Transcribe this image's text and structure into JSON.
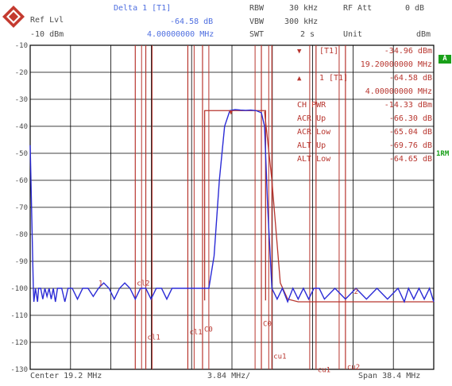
{
  "header": {
    "ref_lvl_label": "Ref Lvl",
    "ref_lvl_value": "-10 dBm",
    "delta_title": "Delta 1 [T1]",
    "delta_level": "-64.58 dB",
    "delta_freq": "4.00000000 MHz",
    "rbw_label": "RBW",
    "rbw_value": "30 kHz",
    "vbw_label": "VBW",
    "vbw_value": "300 kHz",
    "swt_label": "SWT",
    "swt_value": "2 s",
    "rfatt_label": "RF Att",
    "rfatt_value": "0 dB",
    "unit_label": "Unit",
    "unit_value": "dBm"
  },
  "footer": {
    "center": "Center 19.2 MHz",
    "div": "3.84 MHz/",
    "span": "Span 38.4 MHz"
  },
  "side": {
    "badge": "A",
    "label_1rm": "1RM"
  },
  "colors": {
    "trace": "#2b2bd6",
    "marker": "#b8362f",
    "grid": "#000000",
    "header_blue": "#4f6fe0"
  },
  "icons": [
    "rohde-schwarz-logo"
  ],
  "chart_data": {
    "type": "line",
    "title": "",
    "xlabel": "",
    "ylabel": "",
    "xlim": [
      0,
      38.4
    ],
    "ylim": [
      -130,
      -10
    ],
    "y_ticks": [
      -10,
      -20,
      -30,
      -40,
      -50,
      -60,
      -70,
      -80,
      -90,
      -100,
      -110,
      -120,
      -130
    ],
    "grid": true,
    "series": [
      {
        "x": [
          0.0,
          0.3,
          0.35,
          0.5,
          0.7,
          0.8,
          1.0,
          1.2,
          1.4,
          1.6,
          1.8,
          2.0,
          2.2,
          2.4,
          2.6,
          3.0,
          3.3,
          3.6,
          4.0,
          4.5,
          5.0,
          5.5,
          6.0,
          6.5,
          7.0,
          7.5,
          8.0,
          8.5,
          9.0,
          9.5,
          10.0,
          10.5,
          11.0,
          11.5,
          12.0,
          12.5,
          13.0,
          13.5,
          14.0,
          14.5,
          15.0,
          15.5,
          16.0,
          16.5,
          17.0,
          17.5,
          18.0,
          18.5,
          19.0,
          19.5,
          20.0,
          20.5,
          21.0,
          21.5,
          22.0,
          22.3,
          22.6,
          23.0,
          23.5,
          24.0,
          24.5,
          25.0,
          25.5,
          26.0,
          26.5,
          27.0,
          27.5,
          28.0,
          29.0,
          30.0,
          31.0,
          32.0,
          33.0,
          34.0,
          35.0,
          35.6,
          36.0,
          36.5,
          37.0,
          37.5,
          38.0,
          38.4
        ],
        "y": [
          -47,
          -100,
          -105,
          -100,
          -105,
          -100,
          -100,
          -104,
          -100,
          -103,
          -100,
          -104,
          -100,
          -105,
          -100,
          -100,
          -105,
          -100,
          -100,
          -104,
          -100,
          -100,
          -103,
          -100,
          -98,
          -100,
          -104,
          -100,
          -98,
          -100,
          -104,
          -100,
          -100,
          -104,
          -100,
          -100,
          -104,
          -100,
          -100,
          -100,
          -100,
          -100,
          -100,
          -100,
          -100,
          -88,
          -60,
          -40,
          -34.2,
          -33.8,
          -34.0,
          -34.1,
          -34.0,
          -34.2,
          -35.0,
          -40,
          -70,
          -100,
          -104,
          -100,
          -105,
          -100,
          -104,
          -100,
          -104,
          -100,
          -100,
          -104,
          -100,
          -104,
          -100,
          -104,
          -100,
          -104,
          -100,
          -105,
          -100,
          -104,
          -100,
          -104,
          -100,
          -105
        ]
      },
      {
        "x": [
          22.3,
          23.0,
          23.8,
          24.5,
          25.5,
          27.0,
          30.0,
          33.0,
          34.6,
          38.4
        ],
        "y": [
          -34.5,
          -60,
          -98,
          -104,
          -105,
          -105,
          -105,
          -105,
          -105,
          -105
        ]
      }
    ],
    "markers": [
      {
        "label": "T1",
        "level": "-34.96 dBm",
        "freq": "19.20000000 MHz",
        "x": 19.2,
        "y": -34.96
      },
      {
        "label": "1",
        "level": "-64.58 dB",
        "freq": "4.00000000 MHz"
      }
    ],
    "measurements": [
      {
        "name": "CH PWR",
        "value": "-14.33 dBm"
      },
      {
        "name": "ACR Up",
        "value": "-66.30 dB"
      },
      {
        "name": "ACR Low",
        "value": "-65.04 dB"
      },
      {
        "name": "ALT Up",
        "value": "-69.76 dB"
      },
      {
        "name": "ALT Low",
        "value": "-64.65 dB"
      }
    ],
    "channel_lines": [
      {
        "label": "cl2",
        "x": 10.0
      },
      {
        "label": "cl1",
        "x": 11.0
      },
      {
        "label": "cl1",
        "x": 15.0
      },
      {
        "label": "C0",
        "x": 16.4
      },
      {
        "label": "C0",
        "x": 22.0
      },
      {
        "label": "cu1",
        "x": 23.0
      },
      {
        "label": "cu1",
        "x": 27.2
      },
      {
        "label": "cu2",
        "x": 30.0
      }
    ],
    "trace_labels": [
      {
        "label": "1",
        "x": 6.5,
        "y": -99
      },
      {
        "label": "2",
        "x": 30.8,
        "y": -102
      }
    ]
  }
}
